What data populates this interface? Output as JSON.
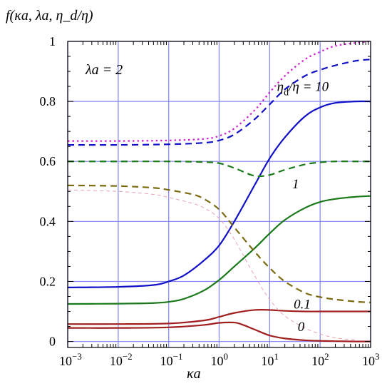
{
  "chart_data": {
    "type": "line",
    "ylabel": "f(κa, λa, η_d/η)",
    "xlabel": "κa",
    "annotation_lambda": "λa = 2",
    "x_scale": "log",
    "xlim": [
      0.001,
      1000
    ],
    "ylim": [
      -0.02,
      1.0
    ],
    "x_ticks": [
      {
        "value": 0.001,
        "base": "10",
        "exp": "−3"
      },
      {
        "value": 0.01,
        "base": "10",
        "exp": "−2"
      },
      {
        "value": 0.1,
        "base": "10",
        "exp": "−1"
      },
      {
        "value": 1,
        "base": "10",
        "exp": "0"
      },
      {
        "value": 10,
        "base": "10",
        "exp": "1"
      },
      {
        "value": 100,
        "base": "10",
        "exp": "2"
      },
      {
        "value": 1000,
        "base": "10",
        "exp": "3"
      }
    ],
    "y_ticks": [
      {
        "value": 0,
        "label": "0"
      },
      {
        "value": 0.2,
        "label": "0.2"
      },
      {
        "value": 0.4,
        "label": "0.4"
      },
      {
        "value": 0.6,
        "label": "0.6"
      },
      {
        "value": 0.8,
        "label": "0.8"
      },
      {
        "value": 1,
        "label": "1"
      }
    ],
    "grid": true,
    "curve_labels": [
      {
        "id": "eta10",
        "prefix": "η",
        "sub": "d",
        "rest": "/η = 10",
        "x": 14,
        "y": 0.835
      },
      {
        "id": "eta1",
        "text": "1",
        "x": 28,
        "y": 0.51
      },
      {
        "id": "eta01",
        "text": "0.1",
        "x": 30,
        "y": 0.11
      },
      {
        "id": "eta0",
        "text": "0",
        "x": 36,
        "y": 0.035
      }
    ],
    "series": [
      {
        "id": "solid-blue",
        "color": "#1010c8",
        "dash": "solid",
        "x": [
          0.001,
          0.01,
          0.05,
          0.1,
          0.2,
          0.5,
          1,
          2,
          5,
          10,
          20,
          50,
          100,
          200,
          500,
          1000
        ],
        "y": [
          0.18,
          0.182,
          0.188,
          0.2,
          0.22,
          0.27,
          0.32,
          0.4,
          0.52,
          0.61,
          0.68,
          0.75,
          0.78,
          0.795,
          0.8,
          0.8
        ]
      },
      {
        "id": "solid-green",
        "color": "#1a7a1a",
        "dash": "solid",
        "x": [
          0.001,
          0.01,
          0.05,
          0.1,
          0.2,
          0.5,
          1,
          2,
          5,
          10,
          20,
          50,
          100,
          200,
          500,
          1000
        ],
        "y": [
          0.125,
          0.126,
          0.128,
          0.132,
          0.142,
          0.17,
          0.205,
          0.25,
          0.31,
          0.36,
          0.405,
          0.445,
          0.465,
          0.475,
          0.482,
          0.485
        ]
      },
      {
        "id": "solid-red-upper",
        "color": "#a02020",
        "dash": "solid",
        "x": [
          0.001,
          0.01,
          0.1,
          0.5,
          1,
          2,
          5,
          10,
          20,
          50,
          100,
          200,
          500,
          1000
        ],
        "y": [
          0.058,
          0.058,
          0.06,
          0.07,
          0.082,
          0.095,
          0.105,
          0.105,
          0.102,
          0.1,
          0.1,
          0.1,
          0.1,
          0.1
        ]
      },
      {
        "id": "solid-red-lower",
        "color": "#a02020",
        "dash": "solid",
        "x": [
          0.001,
          0.01,
          0.1,
          0.5,
          1,
          2,
          3,
          5,
          10,
          20,
          50,
          100,
          200,
          500,
          1000
        ],
        "y": [
          0.045,
          0.045,
          0.047,
          0.055,
          0.062,
          0.063,
          0.055,
          0.04,
          0.02,
          0.01,
          0.004,
          0.002,
          0.001,
          0.0,
          0.0
        ]
      },
      {
        "id": "dotted-magenta",
        "color": "#d020d0",
        "dash": "dotted",
        "x": [
          0.001,
          0.01,
          0.1,
          0.5,
          1,
          2,
          5,
          10,
          20,
          50,
          100,
          200,
          500,
          1000
        ],
        "y": [
          0.668,
          0.668,
          0.67,
          0.675,
          0.685,
          0.71,
          0.77,
          0.83,
          0.885,
          0.94,
          0.965,
          0.985,
          0.995,
          1.0
        ]
      },
      {
        "id": "dashed-blue",
        "color": "#1010c8",
        "dash": "dashed",
        "x": [
          0.001,
          0.01,
          0.1,
          0.5,
          1,
          2,
          5,
          10,
          20,
          50,
          100,
          200,
          500,
          1000
        ],
        "y": [
          0.655,
          0.655,
          0.657,
          0.662,
          0.67,
          0.69,
          0.74,
          0.79,
          0.84,
          0.885,
          0.905,
          0.92,
          0.935,
          0.94
        ]
      },
      {
        "id": "dashed-green",
        "color": "#1a7a1a",
        "dash": "dashed",
        "x": [
          0.001,
          0.01,
          0.1,
          0.5,
          1,
          2,
          5,
          10,
          20,
          50,
          100,
          200,
          500,
          1000
        ],
        "y": [
          0.6,
          0.6,
          0.6,
          0.598,
          0.594,
          0.578,
          0.552,
          0.555,
          0.572,
          0.59,
          0.597,
          0.6,
          0.6,
          0.6
        ]
      },
      {
        "id": "dashed-olive",
        "color": "#7a6a10",
        "dash": "dashed",
        "x": [
          0.001,
          0.01,
          0.05,
          0.1,
          0.3,
          0.5,
          1,
          2,
          5,
          10,
          20,
          50,
          100,
          200,
          500,
          1000
        ],
        "y": [
          0.52,
          0.518,
          0.512,
          0.505,
          0.49,
          0.475,
          0.44,
          0.38,
          0.3,
          0.245,
          0.2,
          0.162,
          0.148,
          0.14,
          0.133,
          0.13
        ]
      },
      {
        "id": "dashed-pink-faint",
        "color": "#e8a0b8",
        "dash": "dashed-thin",
        "x": [
          0.001,
          0.01,
          0.05,
          0.1,
          0.3,
          0.5,
          1,
          2,
          5,
          10,
          20,
          50,
          100,
          200,
          500
        ],
        "y": [
          0.505,
          0.5,
          0.49,
          0.48,
          0.46,
          0.445,
          0.41,
          0.34,
          0.22,
          0.14,
          0.085,
          0.045,
          0.025,
          0.012,
          0.005
        ]
      }
    ]
  }
}
